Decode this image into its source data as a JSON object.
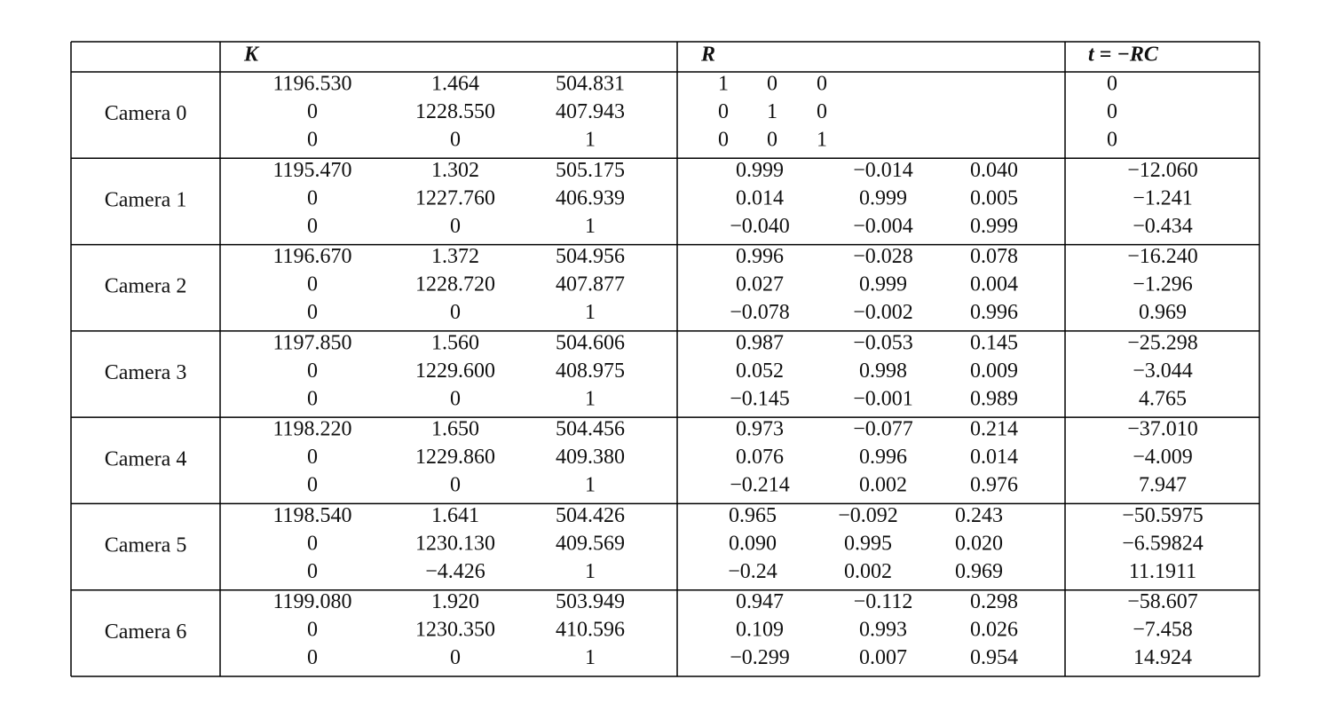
{
  "table": {
    "header": [
      "K",
      "R",
      "t = −RC"
    ],
    "rows": [
      {
        "name": "Camera 0",
        "K": [
          [
            "1196.530",
            "1.464",
            "504.831"
          ],
          [
            "0",
            "1228.550",
            "407.943"
          ],
          [
            "0",
            "0",
            "1"
          ]
        ],
        "R": [
          [
            "1",
            "0",
            "0"
          ],
          [
            "0",
            "1",
            "0"
          ],
          [
            "0",
            "0",
            "1"
          ]
        ],
        "t": [
          "0",
          "0",
          "0"
        ]
      },
      {
        "name": "Camera 1",
        "K": [
          [
            "1195.470",
            "1.302",
            "505.175"
          ],
          [
            "0",
            "1227.760",
            "406.939"
          ],
          [
            "0",
            "0",
            "1"
          ]
        ],
        "R": [
          [
            "0.999",
            "−0.014",
            "0.040"
          ],
          [
            "0.014",
            "0.999",
            "0.005"
          ],
          [
            "−0.040",
            "−0.004",
            "0.999"
          ]
        ],
        "t": [
          "−12.060",
          "−1.241",
          "−0.434"
        ]
      },
      {
        "name": "Camera 2",
        "K": [
          [
            "1196.670",
            "1.372",
            "504.956"
          ],
          [
            "0",
            "1228.720",
            "407.877"
          ],
          [
            "0",
            "0",
            "1"
          ]
        ],
        "R": [
          [
            "0.996",
            "−0.028",
            "0.078"
          ],
          [
            "0.027",
            "0.999",
            "0.004"
          ],
          [
            "−0.078",
            "−0.002",
            "0.996"
          ]
        ],
        "t": [
          "−16.240",
          "−1.296",
          "0.969"
        ]
      },
      {
        "name": "Camera 3",
        "K": [
          [
            "1197.850",
            "1.560",
            "504.606"
          ],
          [
            "0",
            "1229.600",
            "408.975"
          ],
          [
            "0",
            "0",
            "1"
          ]
        ],
        "R": [
          [
            "0.987",
            "−0.053",
            "0.145"
          ],
          [
            "0.052",
            "0.998",
            "0.009"
          ],
          [
            "−0.145",
            "−0.001",
            "0.989"
          ]
        ],
        "t": [
          "−25.298",
          "−3.044",
          "4.765"
        ]
      },
      {
        "name": "Camera 4",
        "K": [
          [
            "1198.220",
            "1.650",
            "504.456"
          ],
          [
            "0",
            "1229.860",
            "409.380"
          ],
          [
            "0",
            "0",
            "1"
          ]
        ],
        "R": [
          [
            "0.973",
            "−0.077",
            "0.214"
          ],
          [
            "0.076",
            "0.996",
            "0.014"
          ],
          [
            "−0.214",
            "0.002",
            "0.976"
          ]
        ],
        "t": [
          "−37.010",
          "−4.009",
          "7.947"
        ]
      },
      {
        "name": "Camera 5",
        "K": [
          [
            "1198.540",
            "1.641",
            "504.426"
          ],
          [
            "0",
            "1230.130",
            "409.569"
          ],
          [
            "0",
            "−4.426",
            "1"
          ]
        ],
        "R": [
          [
            "0.965",
            "−0.092",
            "0.243"
          ],
          [
            "0.090",
            "0.995",
            "0.020"
          ],
          [
            "−0.24",
            "0.002",
            "0.969"
          ]
        ],
        "t": [
          "−50.5975",
          "−6.59824",
          "11.1911"
        ]
      },
      {
        "name": "Camera 6",
        "K": [
          [
            "1199.080",
            "1.920",
            "503.949"
          ],
          [
            "0",
            "1230.350",
            "410.596"
          ],
          [
            "0",
            "0",
            "1"
          ]
        ],
        "R": [
          [
            "0.947",
            "−0.112",
            "0.298"
          ],
          [
            "0.109",
            "0.993",
            "0.026"
          ],
          [
            "−0.299",
            "0.007",
            "0.954"
          ]
        ],
        "t": [
          "−58.607",
          "−7.458",
          "14.924"
        ]
      }
    ]
  }
}
